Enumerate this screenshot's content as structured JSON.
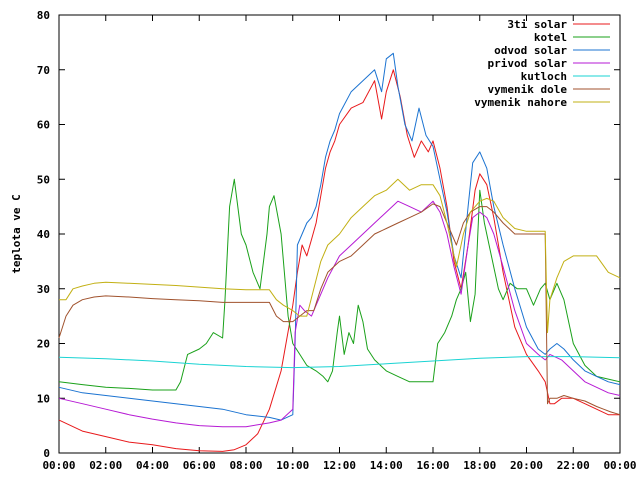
{
  "chart_data": {
    "type": "line",
    "title": "",
    "xlabel": "",
    "ylabel": "teplota ve C",
    "x_unit": "hours (HH:MM)",
    "xlim": [
      0,
      24
    ],
    "ylim": [
      0,
      80
    ],
    "x_tick_labels": [
      "00:00",
      "02:00",
      "04:00",
      "06:00",
      "08:00",
      "10:00",
      "12:00",
      "14:00",
      "16:00",
      "18:00",
      "20:00",
      "22:00",
      "00:00"
    ],
    "x_tick_values": [
      0,
      2,
      4,
      6,
      8,
      10,
      12,
      14,
      16,
      18,
      20,
      22,
      24
    ],
    "y_ticks": [
      0,
      10,
      20,
      30,
      40,
      50,
      60,
      70,
      80
    ],
    "legend_position": "top-right",
    "grid": false,
    "series": [
      {
        "name": "3ti solar",
        "color": "#e8191b",
        "x": [
          0,
          1,
          2,
          3,
          4,
          5,
          6,
          7,
          7.5,
          8,
          8.5,
          9,
          9.5,
          10,
          10.2,
          10.4,
          10.6,
          10.8,
          11,
          11.2,
          11.4,
          11.6,
          11.8,
          12,
          12.5,
          13,
          13.5,
          13.8,
          14,
          14.3,
          14.6,
          14.9,
          15.2,
          15.5,
          15.8,
          16,
          16.3,
          16.6,
          16.9,
          17.2,
          17.5,
          17.8,
          18,
          18.3,
          18.6,
          19,
          19.5,
          20,
          20.5,
          20.8,
          21,
          21.2,
          21.5,
          22,
          22.5,
          23,
          23.5,
          24
        ],
        "values": [
          6,
          4,
          3,
          2,
          1.5,
          0.8,
          0.4,
          0.3,
          0.6,
          1.5,
          3.5,
          8,
          15,
          27,
          33,
          38,
          36,
          39,
          42,
          47,
          52,
          55,
          57,
          60,
          63,
          64,
          68,
          61,
          66,
          70,
          65,
          58,
          54,
          57,
          55,
          57,
          52,
          45,
          35,
          30,
          38,
          48,
          51,
          49,
          43,
          33,
          23,
          18,
          15,
          13,
          9,
          9,
          10,
          10,
          9,
          8,
          7,
          7
        ]
      },
      {
        "name": "kotel",
        "color": "#1aa11a",
        "x": [
          0,
          1,
          2,
          3,
          4,
          5,
          5.2,
          5.5,
          6,
          6.3,
          6.6,
          7,
          7.1,
          7.3,
          7.5,
          7.8,
          8,
          8.3,
          8.6,
          8.9,
          9,
          9.2,
          9.5,
          9.8,
          10,
          10.3,
          10.6,
          11,
          11.3,
          11.5,
          11.7,
          11.9,
          12,
          12.2,
          12.4,
          12.6,
          12.8,
          13,
          13.2,
          13.5,
          14,
          14.5,
          15,
          15.5,
          16,
          16.2,
          16.5,
          16.8,
          17,
          17.2,
          17.4,
          17.6,
          17.8,
          18,
          18.2,
          18.5,
          18.8,
          19,
          19.3,
          19.6,
          20,
          20.3,
          20.6,
          20.8,
          21,
          21.3,
          21.6,
          22,
          22.5,
          23,
          23.5,
          24
        ],
        "values": [
          13,
          12.5,
          12,
          11.8,
          11.5,
          11.5,
          13,
          18,
          19,
          20,
          22,
          21,
          28,
          45,
          50,
          40,
          38,
          33,
          30,
          40,
          45,
          47,
          40,
          25,
          20,
          18,
          16,
          15,
          14,
          13,
          15,
          22,
          25,
          18,
          22,
          20,
          27,
          24,
          19,
          17,
          15,
          14,
          13,
          13,
          13,
          20,
          22,
          25,
          28,
          30,
          33,
          24,
          29,
          48,
          42,
          36,
          30,
          28,
          31,
          30,
          30,
          27,
          30,
          31,
          28,
          31,
          28,
          20,
          16,
          14,
          13.5,
          13
        ]
      },
      {
        "name": "odvod solar",
        "color": "#1b73d1",
        "x": [
          0,
          1,
          2,
          3,
          4,
          5,
          6,
          7,
          8,
          9,
          9.5,
          10,
          10.1,
          10.2,
          10.4,
          10.6,
          10.8,
          11,
          11.2,
          11.4,
          11.6,
          11.8,
          12,
          12.5,
          13,
          13.5,
          13.8,
          14,
          14.3,
          14.5,
          14.8,
          15.1,
          15.4,
          15.7,
          16,
          16.3,
          16.6,
          16.9,
          17.2,
          17.5,
          17.7,
          18,
          18.3,
          18.6,
          19,
          19.5,
          20,
          20.5,
          20.8,
          21,
          21.3,
          21.6,
          22,
          22.5,
          23,
          23.5,
          24
        ],
        "values": [
          12,
          11,
          10.5,
          10,
          9.5,
          9,
          8.5,
          8,
          7,
          6.5,
          6,
          7,
          20,
          38,
          40,
          42,
          43,
          45,
          49,
          54,
          57,
          59,
          62,
          66,
          68,
          70,
          66,
          72,
          73,
          67,
          60,
          57,
          63,
          58,
          56,
          50,
          44,
          36,
          32,
          45,
          53,
          55,
          52,
          45,
          38,
          30,
          23,
          19,
          18,
          19,
          20,
          19,
          17,
          15,
          14,
          13,
          12.5
        ]
      },
      {
        "name": "privod solar",
        "color": "#b61ad4",
        "x": [
          0,
          1,
          2,
          3,
          4,
          5,
          6,
          7,
          8,
          9,
          9.5,
          10,
          10.1,
          10.3,
          10.5,
          10.8,
          11,
          11.5,
          12,
          12.5,
          13,
          13.5,
          14,
          14.5,
          15,
          15.5,
          16,
          16.3,
          16.6,
          16.9,
          17.2,
          17.5,
          17.7,
          18,
          18.3,
          18.6,
          19,
          19.5,
          20,
          20.5,
          20.8,
          21,
          21.5,
          22,
          22.5,
          23,
          23.5,
          24
        ],
        "values": [
          10,
          9,
          8,
          7,
          6.2,
          5.5,
          5,
          4.8,
          4.8,
          5.5,
          6,
          8,
          22,
          27,
          26,
          25,
          27,
          32,
          36,
          38,
          40,
          42,
          44,
          46,
          45,
          44,
          46,
          44,
          40,
          34,
          29,
          38,
          43,
          44,
          43,
          40,
          34,
          26,
          20,
          18,
          17,
          18,
          17,
          15,
          13,
          12,
          11,
          10.5
        ]
      },
      {
        "name": "kutloch",
        "color": "#1ad3d3",
        "x": [
          0,
          2,
          4,
          6,
          8,
          10,
          12,
          14,
          16,
          18,
          20,
          22,
          24
        ],
        "values": [
          17.5,
          17.2,
          16.8,
          16.2,
          15.8,
          15.6,
          15.8,
          16.3,
          16.8,
          17.3,
          17.6,
          17.6,
          17.4
        ]
      },
      {
        "name": "vymenik dole",
        "color": "#a0522d",
        "x": [
          0,
          0.3,
          0.6,
          1,
          1.5,
          2,
          3,
          4,
          5,
          6,
          7,
          7.5,
          8,
          8.5,
          9,
          9.3,
          9.6,
          10,
          10.3,
          10.6,
          10.9,
          11.2,
          11.5,
          12,
          12.5,
          13,
          13.5,
          14,
          14.5,
          15,
          15.5,
          16,
          16.3,
          16.6,
          17,
          17.3,
          17.6,
          18,
          18.3,
          18.6,
          19,
          19.5,
          20,
          20.5,
          20.8,
          20.9,
          21,
          21.3,
          21.6,
          22,
          22.5,
          23,
          23.3,
          23.6,
          24
        ],
        "values": [
          21,
          25,
          27,
          28,
          28.5,
          28.7,
          28.5,
          28.2,
          28,
          27.8,
          27.5,
          27.5,
          27.5,
          27.5,
          27.5,
          25,
          24,
          24,
          25,
          26,
          26,
          30,
          33,
          35,
          36,
          38,
          40,
          41,
          42,
          43,
          44,
          45.5,
          45,
          42,
          38,
          42,
          44,
          45,
          45,
          44,
          42,
          40,
          40,
          40,
          40,
          9,
          10,
          10,
          10.5,
          10,
          9.5,
          8.5,
          8,
          7.5,
          7
        ]
      },
      {
        "name": "vymenik nahore",
        "color": "#c2b014",
        "x": [
          0,
          0.3,
          0.6,
          1,
          1.5,
          2,
          3,
          4,
          5,
          6,
          7,
          8,
          9,
          9.3,
          9.6,
          10,
          10.3,
          10.6,
          10.9,
          11.2,
          11.5,
          12,
          12.5,
          13,
          13.5,
          14,
          14.5,
          15,
          15.5,
          16,
          16.3,
          16.6,
          17,
          17.3,
          17.6,
          18,
          18.3,
          18.6,
          19,
          19.5,
          20,
          20.5,
          20.8,
          20.9,
          21,
          21.3,
          21.6,
          22,
          22.5,
          23,
          23.5,
          24
        ],
        "values": [
          28,
          28,
          30,
          30.5,
          31,
          31.2,
          31,
          30.8,
          30.6,
          30.3,
          30,
          29.8,
          29.8,
          28,
          27,
          26,
          25,
          25,
          30,
          35,
          38,
          40,
          43,
          45,
          47,
          48,
          50,
          48,
          49,
          49,
          47,
          42,
          34,
          40,
          44,
          46,
          46.5,
          46,
          43,
          41,
          40.5,
          40.5,
          40.5,
          22,
          28,
          32,
          35,
          36,
          36,
          36,
          33,
          32
        ]
      }
    ]
  }
}
